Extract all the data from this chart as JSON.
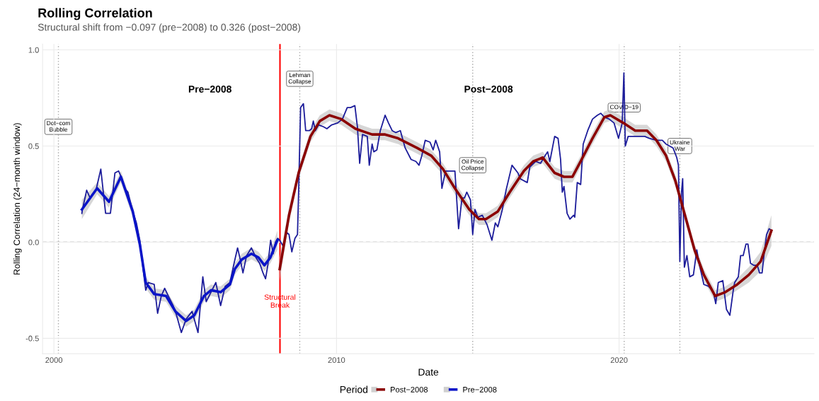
{
  "chart_data": {
    "type": "line",
    "title": "Rolling Correlation",
    "subtitle": "Structural shift from −0.097 (pre−2008) to 0.326 (post−2008)",
    "xlabel": "Date",
    "ylabel": "Rolling Correlation (24−month window)",
    "legend_title": "Period",
    "xlim": [
      1999.6,
      2026.9
    ],
    "ylim": [
      -0.58,
      1.03
    ],
    "xticks": [
      2000,
      2010,
      2020
    ],
    "yticks": [
      -0.5,
      {
        "value": 0,
        "label": "0.0"
      },
      0.5,
      {
        "value": 1,
        "label": "1.0"
      }
    ],
    "grid": true,
    "legend": "bottom",
    "series": [
      {
        "color": "#1c1c9a",
        "x": [
          2000.99,
          2001.01,
          2001.16,
          2001.28,
          2001.49,
          2001.66,
          2001.83,
          2002.0,
          2002.16,
          2002.29,
          2002.41,
          2002.5,
          2002.62,
          2002.79,
          2002.92,
          2003.04,
          2003.13,
          2003.25,
          2003.34,
          2003.55,
          2003.67,
          2003.8,
          2003.92,
          2004.05,
          2004.22,
          2004.34,
          2004.51,
          2004.68,
          2004.89,
          2005.1,
          2005.27,
          2005.39,
          2005.56,
          2005.73,
          2005.9,
          2006.06,
          2006.23,
          2006.36,
          2006.5,
          2006.61,
          2006.69,
          2006.82,
          2006.99,
          2007.15,
          2007.28,
          2007.4,
          2007.49,
          2007.57,
          2007.67,
          2007.76,
          2007.84,
          2007.92,
          2007.99,
          2008.11,
          2008.24,
          2008.32,
          2008.42,
          2008.53,
          2008.62,
          2008.66,
          2008.73,
          2008.83,
          2008.91,
          2009.04,
          2009.12,
          2009.18,
          2009.25,
          2009.37,
          2009.54,
          2009.66,
          2009.83,
          2010.04,
          2010.21,
          2010.38,
          2010.5,
          2010.65,
          2010.74,
          2010.82,
          2010.92,
          2011.09,
          2011.16,
          2011.26,
          2011.32,
          2011.43,
          2011.55,
          2011.72,
          2011.84,
          2011.97,
          2012.1,
          2012.26,
          2012.43,
          2012.64,
          2012.81,
          2012.92,
          2013.02,
          2013.14,
          2013.31,
          2013.42,
          2013.51,
          2013.65,
          2013.73,
          2013.86,
          2013.98,
          2014.19,
          2014.32,
          2014.44,
          2014.53,
          2014.61,
          2014.74,
          2014.82,
          2014.9,
          2015.0,
          2015.16,
          2015.33,
          2015.5,
          2015.62,
          2015.71,
          2015.87,
          2016.0,
          2016.21,
          2016.42,
          2016.5,
          2016.75,
          2016.84,
          2017.05,
          2017.22,
          2017.34,
          2017.47,
          2017.55,
          2017.72,
          2017.84,
          2017.93,
          2017.99,
          2018.05,
          2018.16,
          2018.26,
          2018.39,
          2018.43,
          2018.52,
          2018.64,
          2018.73,
          2018.89,
          2019.06,
          2019.23,
          2019.35,
          2019.48,
          2019.65,
          2019.82,
          2019.98,
          2020.11,
          2020.17,
          2020.22,
          2020.32,
          2020.57,
          2020.91,
          2021.07,
          2021.32,
          2021.53,
          2021.66,
          2021.91,
          2022.04,
          2022.1,
          2022.15,
          2022.21,
          2022.25,
          2022.31,
          2022.4,
          2022.5,
          2022.63,
          2022.75,
          2022.83,
          2023.0,
          2023.17,
          2023.34,
          2023.42,
          2023.51,
          2023.67,
          2023.8,
          2023.92,
          2024.05,
          2024.09,
          2024.22,
          2024.3,
          2024.39,
          2024.49,
          2024.56,
          2024.65,
          2024.76,
          2024.89,
          2024.97,
          2025.06,
          2025.14,
          2025.22,
          2025.31,
          2025.39
        ],
        "values": [
          0.15,
          0.17,
          0.27,
          0.23,
          0.27,
          0.38,
          0.15,
          0.15,
          0.36,
          0.37,
          0.33,
          0.28,
          0.26,
          0.16,
          0.1,
          0.01,
          -0.11,
          -0.25,
          -0.21,
          -0.22,
          -0.37,
          -0.28,
          -0.24,
          -0.28,
          -0.33,
          -0.38,
          -0.47,
          -0.4,
          -0.36,
          -0.47,
          -0.18,
          -0.31,
          -0.26,
          -0.21,
          -0.33,
          -0.23,
          -0.21,
          -0.12,
          -0.03,
          -0.1,
          -0.16,
          -0.07,
          -0.03,
          -0.08,
          -0.11,
          -0.16,
          -0.19,
          -0.12,
          0.01,
          -0.06,
          0.0,
          0.02,
          0.01,
          -0.02,
          0.05,
          0.04,
          -0.05,
          0.02,
          0.04,
          0.26,
          0.7,
          0.72,
          0.58,
          0.58,
          0.59,
          0.63,
          0.58,
          0.61,
          0.6,
          0.59,
          0.61,
          0.62,
          0.64,
          0.7,
          0.7,
          0.71,
          0.6,
          0.41,
          0.56,
          0.55,
          0.4,
          0.51,
          0.47,
          0.48,
          0.58,
          0.66,
          0.62,
          0.58,
          0.57,
          0.58,
          0.49,
          0.43,
          0.42,
          0.4,
          0.45,
          0.53,
          0.52,
          0.48,
          0.53,
          0.47,
          0.28,
          0.37,
          0.37,
          0.37,
          0.07,
          0.23,
          0.23,
          0.26,
          0.22,
          0.04,
          0.17,
          0.13,
          0.14,
          0.09,
          0.01,
          0.1,
          0.08,
          0.17,
          0.27,
          0.4,
          0.36,
          0.33,
          0.31,
          0.39,
          0.42,
          0.41,
          0.44,
          0.47,
          0.42,
          0.55,
          0.54,
          0.43,
          0.26,
          0.29,
          0.15,
          0.12,
          0.14,
          0.13,
          0.31,
          0.3,
          0.51,
          0.58,
          0.64,
          0.66,
          0.67,
          0.65,
          0.64,
          0.62,
          0.54,
          0.62,
          0.88,
          0.5,
          0.55,
          0.55,
          0.55,
          0.54,
          0.53,
          0.53,
          0.51,
          0.49,
          0.44,
          0.4,
          -0.1,
          0.26,
          0.33,
          -0.13,
          -0.07,
          -0.18,
          -0.17,
          -0.04,
          -0.11,
          -0.22,
          -0.23,
          -0.26,
          -0.32,
          -0.21,
          -0.2,
          -0.35,
          -0.38,
          -0.24,
          -0.21,
          -0.18,
          -0.07,
          -0.07,
          -0.01,
          -0.01,
          -0.11,
          -0.12,
          -0.12,
          -0.16,
          -0.16,
          -0.05,
          0.04,
          0.07,
          0.06
        ]
      },
      {
        "name": "Post−2008",
        "color": "#8b0000",
        "x": [
          2007.99,
          2008.32,
          2008.66,
          2009.08,
          2009.41,
          2009.75,
          2010.17,
          2010.67,
          2011.26,
          2011.72,
          2012.18,
          2012.85,
          2013.35,
          2013.77,
          2014.19,
          2014.7,
          2015.04,
          2015.29,
          2015.71,
          2016.13,
          2016.63,
          2016.96,
          2017.3,
          2017.72,
          2018.05,
          2018.35,
          2018.64,
          2019.06,
          2019.48,
          2019.69,
          2020.15,
          2020.57,
          2020.99,
          2021.32,
          2021.66,
          2021.99,
          2022.33,
          2022.67,
          2023.0,
          2023.4,
          2023.76,
          2024.18,
          2024.59,
          2025.01,
          2025.39
        ],
        "values": [
          -0.14,
          0.14,
          0.36,
          0.55,
          0.63,
          0.66,
          0.64,
          0.59,
          0.56,
          0.56,
          0.54,
          0.49,
          0.45,
          0.38,
          0.28,
          0.17,
          0.12,
          0.12,
          0.16,
          0.26,
          0.37,
          0.42,
          0.44,
          0.36,
          0.34,
          0.34,
          0.42,
          0.54,
          0.65,
          0.66,
          0.62,
          0.58,
          0.58,
          0.53,
          0.45,
          0.32,
          0.14,
          -0.04,
          -0.17,
          -0.28,
          -0.26,
          -0.22,
          -0.17,
          -0.1,
          0.06
        ],
        "lower": [
          -0.2,
          0.1,
          0.33,
          0.52,
          0.6,
          0.63,
          0.61,
          0.56,
          0.53,
          0.53,
          0.51,
          0.46,
          0.42,
          0.35,
          0.25,
          0.14,
          0.09,
          0.09,
          0.13,
          0.23,
          0.34,
          0.39,
          0.41,
          0.33,
          0.31,
          0.31,
          0.39,
          0.51,
          0.62,
          0.63,
          0.59,
          0.55,
          0.55,
          0.5,
          0.42,
          0.29,
          0.11,
          -0.07,
          -0.2,
          -0.31,
          -0.29,
          -0.25,
          -0.21,
          -0.15,
          -0.02
        ],
        "upper": [
          -0.08,
          0.18,
          0.39,
          0.58,
          0.66,
          0.69,
          0.67,
          0.62,
          0.59,
          0.59,
          0.57,
          0.52,
          0.48,
          0.41,
          0.31,
          0.2,
          0.15,
          0.15,
          0.19,
          0.29,
          0.4,
          0.45,
          0.47,
          0.39,
          0.37,
          0.37,
          0.45,
          0.57,
          0.68,
          0.69,
          0.65,
          0.61,
          0.61,
          0.56,
          0.48,
          0.35,
          0.17,
          -0.01,
          -0.14,
          -0.25,
          -0.23,
          -0.19,
          -0.13,
          -0.05,
          0.14
        ]
      },
      {
        "name": "Pre−2008",
        "color": "#0a14c8",
        "x": [
          2000.99,
          2001.53,
          2001.95,
          2002.37,
          2002.79,
          2003.04,
          2003.25,
          2003.55,
          2003.97,
          2004.3,
          2004.68,
          2004.97,
          2005.31,
          2005.56,
          2005.9,
          2006.23,
          2006.4,
          2006.65,
          2006.99,
          2007.24,
          2007.45,
          2007.66,
          2007.91
        ],
        "values": [
          0.17,
          0.28,
          0.21,
          0.34,
          0.16,
          -0.01,
          -0.21,
          -0.27,
          -0.28,
          -0.36,
          -0.41,
          -0.38,
          -0.28,
          -0.25,
          -0.26,
          -0.22,
          -0.14,
          -0.09,
          -0.06,
          -0.08,
          -0.12,
          -0.08,
          0.01
        ],
        "lower": [
          0.12,
          0.25,
          0.18,
          0.31,
          0.13,
          -0.04,
          -0.24,
          -0.3,
          -0.31,
          -0.39,
          -0.44,
          -0.41,
          -0.31,
          -0.28,
          -0.29,
          -0.25,
          -0.17,
          -0.12,
          -0.09,
          -0.11,
          -0.15,
          -0.11,
          -0.04
        ],
        "upper": [
          0.22,
          0.31,
          0.24,
          0.37,
          0.19,
          0.02,
          -0.18,
          -0.24,
          -0.25,
          -0.33,
          -0.38,
          -0.35,
          -0.25,
          -0.22,
          -0.23,
          -0.19,
          -0.11,
          -0.06,
          -0.03,
          -0.05,
          -0.09,
          -0.05,
          0.06
        ]
      }
    ],
    "ref_lines": [
      {
        "axis": "y",
        "value": 0,
        "color": "#8c8c8c",
        "line_style": "dashed"
      },
      {
        "axis": "x",
        "value": 2008.0,
        "color": "#ff0000",
        "line_style": "solid"
      },
      {
        "axis": "x",
        "value": 2000.16,
        "color": "#a6a6a6",
        "line_style": "dotted"
      },
      {
        "axis": "x",
        "value": 2008.7,
        "color": "#a6a6a6",
        "line_style": "dotted"
      },
      {
        "axis": "x",
        "value": 2014.82,
        "color": "#a6a6a6",
        "line_style": "dotted"
      },
      {
        "axis": "x",
        "value": 2020.18,
        "color": "#a6a6a6",
        "line_style": "dotted"
      },
      {
        "axis": "x",
        "value": 2022.15,
        "color": "#a6a6a6",
        "line_style": "dotted"
      }
    ],
    "annotations": [
      "Pre−2008",
      "Post−2008",
      {
        "text": "Structural\nBreak",
        "x": 2008.0,
        "y": -0.31
      },
      {
        "text": "Dot−com\nBubble",
        "x": 2000.16,
        "y": 0.6
      },
      {
        "text": "Lehman\nCollapse",
        "x": 2008.7,
        "y": 0.85
      },
      {
        "text": "Oil Price\nCollapse",
        "x": 2014.82,
        "y": 0.4
      },
      {
        "text": "COVID−19",
        "x": 2020.18,
        "y": 0.7
      },
      {
        "text": "Ukraine\nWar",
        "x": 2022.15,
        "y": 0.5
      }
    ]
  }
}
